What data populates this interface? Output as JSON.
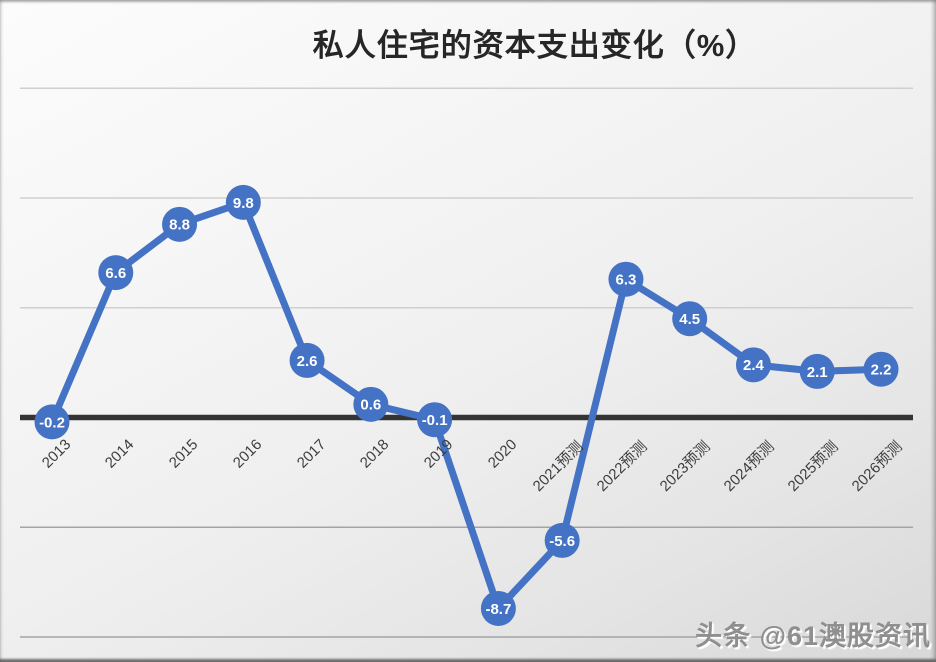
{
  "page": {
    "watermark": "头条 @61澳股资讯"
  },
  "colors": {
    "line": "#4472C4",
    "marker": "#4472C4",
    "marker_text": "#FFFFFF",
    "zero_axis": "#343434",
    "axis_label": "#3D3D3D",
    "title_text": "#262626",
    "watermark_text": "#8F8F8F",
    "gridline_positive": "#CFCFCF",
    "gridline_negative": "#A4A4A4"
  },
  "chart_data": {
    "type": "line",
    "title": "私人住宅的资本支出变化（%）",
    "xlabel": "",
    "ylabel": "",
    "categories": [
      "2013",
      "2014",
      "2015",
      "2016",
      "2017",
      "2018",
      "2019",
      "2020",
      "2021预测",
      "2022预测",
      "2023预测",
      "2024预测",
      "2025预测",
      "2026预测"
    ],
    "values": [
      -0.2,
      6.6,
      8.8,
      9.8,
      2.6,
      0.6,
      -0.1,
      -8.7,
      -5.6,
      6.3,
      4.5,
      2.4,
      2.1,
      2.2
    ],
    "ylim": [
      -11.5,
      15.2
    ],
    "gridlines": [
      {
        "value": 15,
        "tone": "positive"
      },
      {
        "value": 10,
        "tone": "positive"
      },
      {
        "value": 5,
        "tone": "positive"
      },
      {
        "value": -5,
        "tone": "negative"
      },
      {
        "value": -10,
        "tone": "negative"
      }
    ],
    "zero_axis": true,
    "grid": "horizontal",
    "legend": "none",
    "data_labels": true
  }
}
